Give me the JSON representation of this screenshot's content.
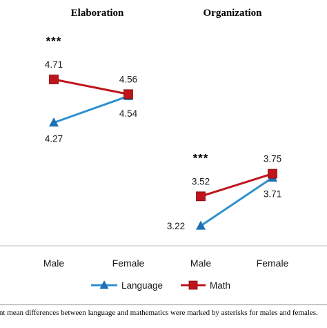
{
  "chart_data": {
    "type": "line",
    "panels": [
      {
        "title": "Elaboration",
        "categories": [
          "Male",
          "Female"
        ],
        "significance": [
          {
            "category": "Male",
            "text": "***"
          }
        ],
        "series": [
          {
            "name": "Language",
            "values": [
              4.27,
              4.54
            ],
            "labels": [
              "4.27",
              "4.54"
            ]
          },
          {
            "name": "Math",
            "values": [
              4.71,
              4.56
            ],
            "labels": [
              "4.71",
              "4.56"
            ]
          }
        ]
      },
      {
        "title": "Organization",
        "categories": [
          "Male",
          "Female"
        ],
        "significance": [
          {
            "category": "Male",
            "text": "***"
          }
        ],
        "series": [
          {
            "name": "Language",
            "values": [
              3.22,
              3.71
            ],
            "labels": [
              "3.22",
              "3.71"
            ]
          },
          {
            "name": "Math",
            "values": [
              3.52,
              3.75
            ],
            "labels": [
              "3.52",
              "3.75"
            ]
          }
        ]
      }
    ],
    "ylim": [
      3.0,
      5.0
    ],
    "grid": false,
    "legend": {
      "position": "bottom",
      "entries": [
        "Language",
        "Math"
      ]
    },
    "colors": {
      "Language": "#2e8fcf",
      "Math": "#c0141c",
      "MathMarker": "#c0141c",
      "LanguageMarker": "#1f6fb5"
    }
  },
  "caption": "ant mean differences between language and mathematics were marked by asterisks for males and females."
}
